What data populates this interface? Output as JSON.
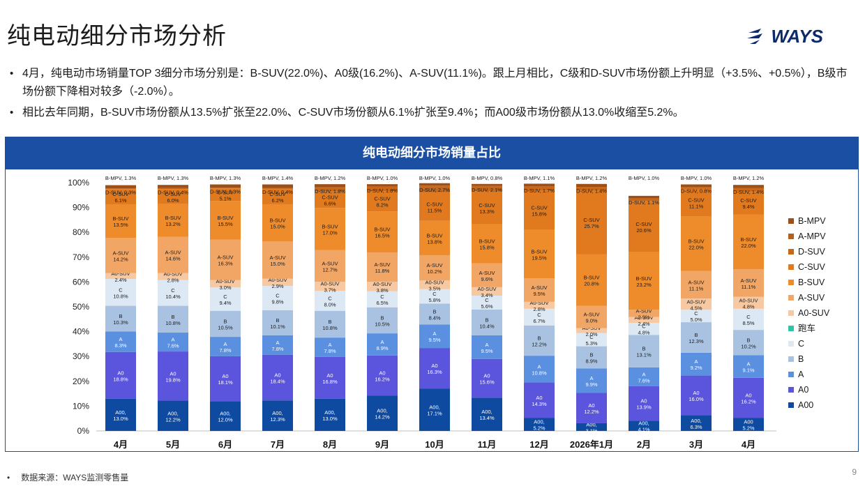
{
  "header": {
    "title": "纯电动细分市场分析",
    "logo_text": "WAYS"
  },
  "bullets": [
    "4月，纯电动市场销量TOP 3细分市场分别是：B-SUV(22.0%)、A0级(16.2%)、A-SUV(11.1%)。跟上月相比，C级和D-SUV市场份额上升明显（+3.5%、+0.5%），B级市场份额下降相对较多（-2.0%）。",
    "相比去年同期，B-SUV市场份额从13.5%扩张至22.0%、C-SUV市场份额从6.1%扩张至9.4%；而A00级市场份额从13.0%收缩至5.2%。"
  ],
  "footer": {
    "source": "数据来源：WAYS监测零售量",
    "page_number": "9"
  },
  "colors": {
    "A00": "#0e4aa0",
    "A0": "#5b54dc",
    "A": "#5b8fe0",
    "B": "#a9c2e2",
    "C": "#dde8f5",
    "跑车": "#2ec4a6",
    "A0-SUV": "#f6c9a3",
    "A-SUV": "#f2a666",
    "B-SUV": "#ee8b2b",
    "C-SUV": "#e17a1e",
    "D-SUV": "#c86717",
    "A-MPV": "#b55e20",
    "B-MPV": "#9c4f18"
  },
  "chart_data": {
    "type": "bar",
    "stacked": true,
    "title": "纯电动细分市场销量占比",
    "categories": [
      "4月",
      "5月",
      "6月",
      "7月",
      "8月",
      "9月",
      "10月",
      "11月",
      "12月",
      "2026年1月",
      "2月",
      "3月",
      "4月"
    ],
    "ylim": [
      0,
      100
    ],
    "yticks": [
      "0%",
      "10%",
      "20%",
      "30%",
      "40%",
      "50%",
      "60%",
      "70%",
      "80%",
      "90%",
      "100%"
    ],
    "legend_position": "right",
    "legend": [
      "B-MPV",
      "A-MPV",
      "D-SUV",
      "C-SUV",
      "B-SUV",
      "A-SUV",
      "A0-SUV",
      "跑车",
      "C",
      "B",
      "A",
      "A0",
      "A00"
    ],
    "series": [
      {
        "name": "A00",
        "label_prefix": "A00,",
        "values": [
          13.0,
          12.2,
          12.0,
          12.3,
          13.0,
          14.2,
          17.1,
          13.4,
          5.2,
          3.1,
          4.1,
          6.3,
          5.2
        ],
        "label_overrides": {
          "12": "A00"
        }
      },
      {
        "name": "A0",
        "label_prefix": "A0",
        "values": [
          18.8,
          19.8,
          18.1,
          18.4,
          16.8,
          16.2,
          16.3,
          15.6,
          14.3,
          12.2,
          13.9,
          16.0,
          16.2
        ]
      },
      {
        "name": "A",
        "label_prefix": "A",
        "values": [
          8.3,
          7.6,
          7.8,
          7.8,
          7.8,
          8.9,
          9.5,
          9.5,
          10.8,
          9.9,
          7.6,
          9.2,
          9.1
        ]
      },
      {
        "name": "B",
        "label_prefix": "B",
        "values": [
          10.3,
          10.8,
          10.5,
          10.1,
          10.8,
          10.5,
          8.4,
          10.4,
          12.2,
          8.9,
          13.1,
          12.3,
          10.2
        ]
      },
      {
        "name": "跑车",
        "label_prefix": "跑车",
        "values": [
          0,
          0,
          0,
          0,
          0,
          0,
          0,
          0,
          0,
          0,
          0,
          0,
          0
        ]
      },
      {
        "name": "C",
        "label_prefix": "C",
        "values": [
          10.8,
          10.4,
          9.4,
          9.8,
          8.0,
          6.5,
          5.8,
          5.6,
          6.7,
          5.3,
          4.8,
          5.0,
          8.5
        ]
      },
      {
        "name": "A0-SUV",
        "label_prefix": "A0-SUV",
        "values": [
          2.4,
          2.8,
          3.0,
          2.9,
          3.7,
          3.8,
          3.5,
          3.4,
          2.8,
          2.0,
          2.4,
          4.5,
          4.8
        ]
      },
      {
        "name": "A-SUV",
        "label_prefix": "A-SUV",
        "values": [
          14.2,
          14.6,
          16.3,
          15.0,
          12.7,
          11.8,
          10.2,
          9.6,
          9.5,
          9.0,
          2.9,
          11.1,
          11.1
        ]
      },
      {
        "name": "B-SUV",
        "label_prefix": "B-SUV",
        "values": [
          13.5,
          13.2,
          15.5,
          15.0,
          17.0,
          16.5,
          13.8,
          15.8,
          19.5,
          20.8,
          23.2,
          22.0,
          22.0
        ]
      },
      {
        "name": "C-SUV",
        "label_prefix": "C-SUV",
        "values": [
          6.1,
          6.0,
          5.1,
          6.2,
          6.6,
          8.2,
          11.5,
          13.3,
          15.8,
          25.7,
          20.6,
          11.1,
          9.4
        ]
      },
      {
        "name": "D-SUV",
        "label_prefix": "D-SUV,",
        "values": [
          0.3,
          0.4,
          0.3,
          0.4,
          1.8,
          1.8,
          2.7,
          2.1,
          1.7,
          1.4,
          1.1,
          0.8,
          1.4
        ]
      },
      {
        "name": "A-MPV",
        "label_prefix": "A-MPV",
        "values": [
          0,
          0,
          0,
          0,
          0,
          0,
          0,
          0,
          0,
          0,
          0,
          0,
          0
        ]
      },
      {
        "name": "B-MPV",
        "label_prefix": "B-MPV,",
        "values": [
          1.3,
          1.3,
          1.3,
          1.4,
          1.2,
          1.0,
          1.0,
          0.8,
          1.1,
          1.2,
          1.0,
          1.0,
          1.2
        ]
      }
    ]
  }
}
